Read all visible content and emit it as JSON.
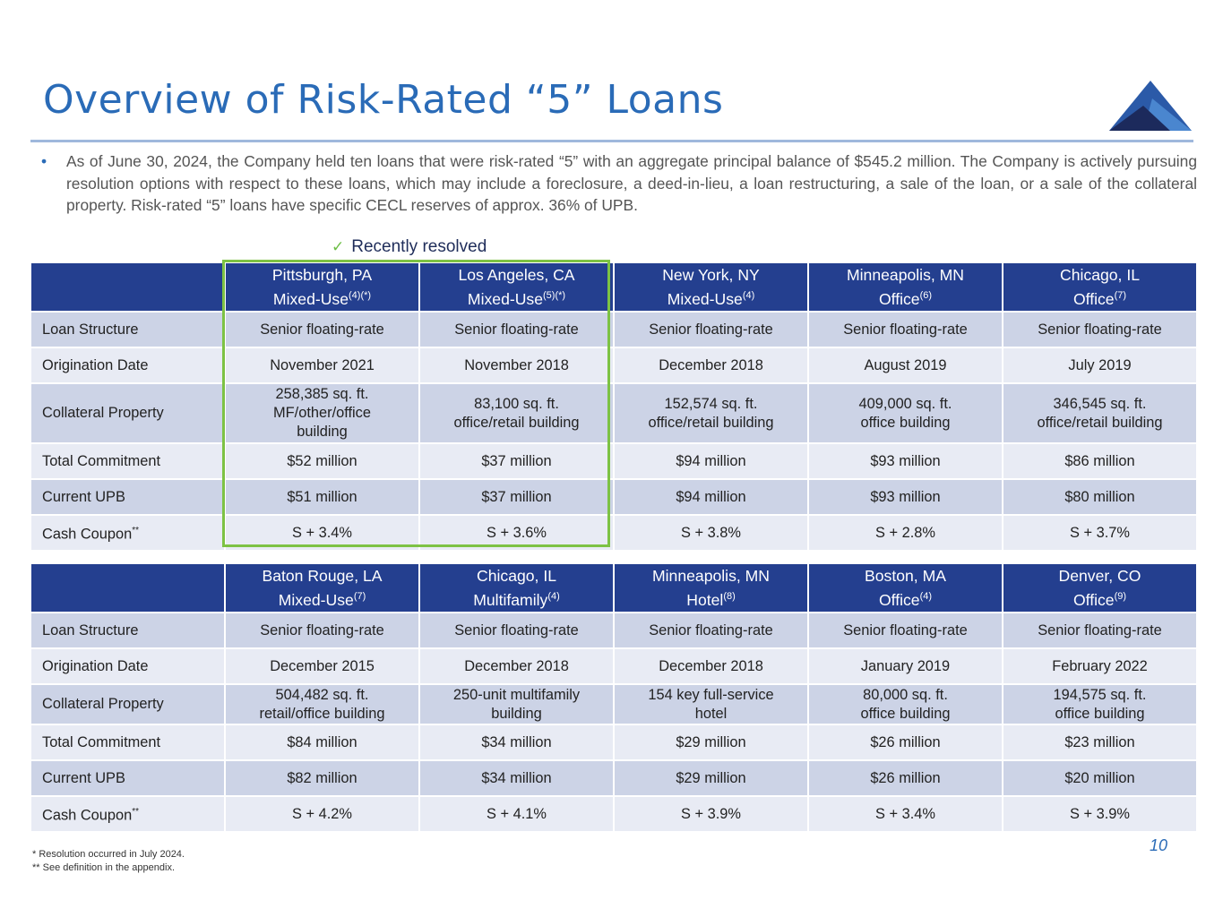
{
  "title": "Overview of Risk-Rated “5” Loans",
  "bullet": "As of June 30, 2024, the Company held ten loans that were risk-rated “5” with an aggregate principal balance of $545.2 million. The Company is actively pursuing resolution options with respect to these loans, which may include a foreclosure, a deed-in-lieu, a loan restructuring, a sale of the loan, or a sale of the collateral property. Risk-rated “5” loans have specific CECL reserves of approx. 36% of UPB.",
  "recently_resolved": "Recently resolved",
  "colors": {
    "title": "#2a6bb7",
    "header": "#243f8f",
    "highlight": "#7dc244"
  },
  "tables": [
    {
      "headers": [
        {
          "city": "Pittsburgh, PA",
          "type": "Mixed-Use",
          "note": "(4)(*)"
        },
        {
          "city": "Los Angeles, CA",
          "type": "Mixed-Use",
          "note": "(5)(*)"
        },
        {
          "city": "New York, NY",
          "type": "Mixed-Use",
          "note": "(4)"
        },
        {
          "city": "Minneapolis, MN",
          "type": "Office",
          "note": "(6)"
        },
        {
          "city": "Chicago, IL",
          "type": "Office",
          "note": "(7)"
        }
      ],
      "rows": [
        {
          "label": "Loan Structure",
          "cells": [
            "Senior floating-rate",
            "Senior floating-rate",
            "Senior floating-rate",
            "Senior floating-rate",
            "Senior floating-rate"
          ]
        },
        {
          "label": "Origination Date",
          "cells": [
            "November 2021",
            "November 2018",
            "December 2018",
            "August 2019",
            "July 2019"
          ]
        },
        {
          "label": "Collateral Property",
          "cells": [
            "258,385 sq. ft.\nMF/other/office\nbuilding",
            "83,100 sq. ft.\noffice/retail building",
            "152,574 sq. ft.\noffice/retail building",
            "409,000 sq. ft.\noffice building",
            "346,545 sq. ft.\noffice/retail building"
          ]
        },
        {
          "label": "Total Commitment",
          "cells": [
            "$52 million",
            "$37 million",
            "$94 million",
            "$93 million",
            "$86 million"
          ]
        },
        {
          "label": "Current UPB",
          "cells": [
            "$51 million",
            "$37 million",
            "$94 million",
            "$93 million",
            "$80 million"
          ]
        },
        {
          "label": "Cash Coupon",
          "label_note": "**",
          "cells": [
            "S + 3.4%",
            "S + 3.6%",
            "S + 3.8%",
            "S + 2.8%",
            "S + 3.7%"
          ]
        }
      ]
    },
    {
      "headers": [
        {
          "city": "Baton Rouge, LA",
          "type": "Mixed-Use",
          "note": "(7)"
        },
        {
          "city": "Chicago, IL",
          "type": "Multifamily",
          "note": "(4)"
        },
        {
          "city": "Minneapolis, MN",
          "type": "Hotel",
          "note": "(8)"
        },
        {
          "city": "Boston, MA",
          "type": "Office",
          "note": "(4)"
        },
        {
          "city": "Denver, CO",
          "type": "Office",
          "note": "(9)"
        }
      ],
      "rows": [
        {
          "label": "Loan Structure",
          "cells": [
            "Senior floating-rate",
            "Senior floating-rate",
            "Senior floating-rate",
            "Senior floating-rate",
            "Senior floating-rate"
          ]
        },
        {
          "label": "Origination Date",
          "cells": [
            "December 2015",
            "December 2018",
            "December 2018",
            "January 2019",
            "February 2022"
          ]
        },
        {
          "label": "Collateral Property",
          "cells": [
            "504,482 sq. ft.\nretail/office building",
            "250-unit multifamily\nbuilding",
            "154 key full-service\nhotel",
            "80,000 sq. ft.\noffice building",
            "194,575 sq. ft.\noffice building"
          ]
        },
        {
          "label": "Total Commitment",
          "cells": [
            "$84 million",
            "$34 million",
            "$29 million",
            "$26 million",
            "$23 million"
          ]
        },
        {
          "label": "Current UPB",
          "cells": [
            "$82 million",
            "$34 million",
            "$29 million",
            "$26 million",
            "$20 million"
          ]
        },
        {
          "label": "Cash Coupon",
          "label_note": "**",
          "cells": [
            "S + 4.2%",
            "S + 4.1%",
            "S + 3.9%",
            "S + 3.4%",
            "S + 3.9%"
          ]
        }
      ]
    }
  ],
  "page_number": "10",
  "footnotes": [
    "* Resolution occurred in July 2024.",
    " ** See definition in the appendix."
  ]
}
